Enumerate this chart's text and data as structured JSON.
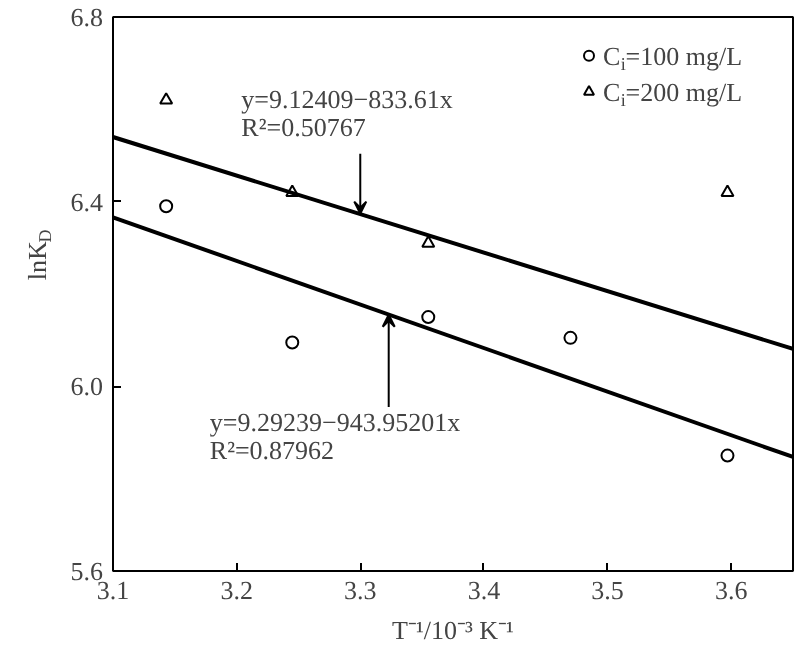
{
  "chart_data": {
    "type": "scatter",
    "xlabel": "T⁻¹/10⁻³ K⁻¹",
    "ylabel": "lnK$_{D}$",
    "x": [
      3.143,
      3.245,
      3.355,
      3.47,
      3.597
    ],
    "series": [
      {
        "name": "C$_{i}$=100 mg/L",
        "color": "#000000",
        "marker": "circle",
        "values": [
          6.39,
          6.095,
          6.15,
          6.105,
          5.85
        ]
      },
      {
        "name": "C$_{i}$=200 mg/L",
        "color": "#000000",
        "marker": "triangle",
        "x": [
          3.143,
          3.245,
          3.355,
          3.597
        ],
        "values": [
          6.62,
          6.42,
          6.31,
          6.42
        ]
      },
      {
        "type": "line",
        "color": "#000000",
        "x": [
          3.1,
          3.65
        ],
        "values": [
          6.54,
          6.081
        ]
      },
      {
        "type": "line",
        "color": "#000000",
        "x": [
          3.1,
          3.65
        ],
        "values": [
          6.366,
          5.847
        ]
      }
    ],
    "annotations": [
      {
        "text": "y=9.12409−833.61x\nR²=0.50767",
        "x": 3.3,
        "y": 6.374
      },
      {
        "text": "y=9.29239−943.95201x\nR²=0.87962",
        "x": 3.323,
        "y": 6.155
      }
    ],
    "xlim": [
      3.1,
      3.65
    ],
    "ylim": [
      5.6,
      6.8
    ],
    "xticks": [
      3.1,
      3.2,
      3.3,
      3.4,
      3.5,
      3.6
    ],
    "yticks": [
      {
        "value": 5.6,
        "label": "5.6"
      },
      {
        "value": 6.0,
        "label": "6.0"
      },
      {
        "value": 6.4,
        "label": "6.4"
      },
      {
        "value": 6.8,
        "label": "6.8"
      }
    ],
    "grid": false,
    "legend": "top right",
    "line_style": "solid"
  }
}
